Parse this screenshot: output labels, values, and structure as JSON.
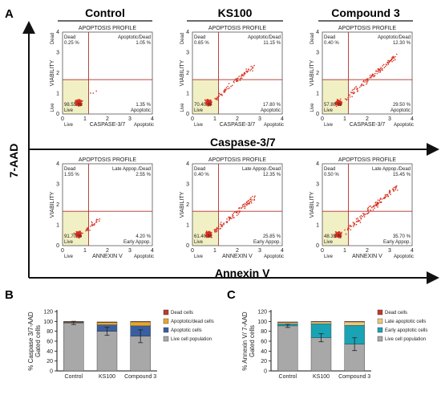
{
  "panel_labels": {
    "a": "A",
    "b": "B",
    "c": "C"
  },
  "conditions": [
    "Control",
    "KS100",
    "Compound 3"
  ],
  "flow": {
    "profile_title": "APOPTOSIS PROFILE",
    "y_axis_main": "7-AAD",
    "row1": {
      "axis_main": "Caspase-3/7",
      "xlabel": "CASPASE-3/7",
      "ylabel": "VIABILITY",
      "ylabel_top": "Dead",
      "ylabel_bottom": "Live",
      "xlabel_left": "Live",
      "xlabel_right": "Apoptotic",
      "q_tl": "Dead",
      "q_tr": "Apoptotic/Dead",
      "q_bl": "Live",
      "q_br": "Apoptotic"
    },
    "row2": {
      "axis_main": "Annexin V",
      "xlabel": "ANNEXIN V",
      "ylabel": "VIABILITY",
      "xlabel_left": "Live",
      "xlabel_right": "Apoptotic",
      "q_tl": "Dead",
      "q_tr": "Late Appop./Dead",
      "q_bl": "Live",
      "q_br": "Early Appop."
    },
    "ticks": [
      "0",
      "1",
      "2",
      "3",
      "4"
    ],
    "plots": [
      [
        {
          "tl": "0.25 %",
          "tr": "1.05 %",
          "bl": "98.55 %",
          "br": "1.35 %"
        },
        {
          "tl": "0.65 %",
          "tr": "11.15 %",
          "bl": "70.40 %",
          "br": "17.80 %"
        },
        {
          "tl": "0.40 %",
          "tr": "12.30 %",
          "bl": "57.80 %",
          "br": "29.50 %"
        }
      ],
      [
        {
          "tl": "1.55 %",
          "tr": "2.55 %",
          "bl": "91.70 %",
          "br": "4.20 %"
        },
        {
          "tl": "0.40 %",
          "tr": "12.35 %",
          "bl": "61.40 %",
          "br": "25.85 %"
        },
        {
          "tl": "0.50 %",
          "tr": "15.45 %",
          "bl": "48.35 %",
          "br": "35.70 %"
        }
      ]
    ]
  },
  "chart_data": [
    {
      "type": "bar",
      "stacked": true,
      "panel": "B",
      "categories": [
        "Control",
        "KS100",
        "Compound 3"
      ],
      "ylabel": "% Caspase 3/7-AAD Gated cells",
      "ylim": [
        0,
        120
      ],
      "yticks": [
        "0",
        "20",
        "40",
        "60",
        "80",
        "100",
        "120"
      ],
      "legend_position": "right",
      "series": [
        {
          "name": "Live cell population",
          "color": "#a8a8a8",
          "values": [
            97,
            80,
            70
          ]
        },
        {
          "name": "Apoptotic cells",
          "color": "#3a5fa0",
          "values": [
            1,
            13,
            21
          ]
        },
        {
          "name": "Apoptotic/dead cells",
          "color": "#e6a92c",
          "values": [
            1,
            5,
            8
          ]
        },
        {
          "name": "Dead cells",
          "color": "#c0392b",
          "values": [
            1,
            1,
            1
          ]
        }
      ]
    },
    {
      "type": "bar",
      "stacked": true,
      "panel": "C",
      "categories": [
        "Control",
        "KS100",
        "Compound 3"
      ],
      "ylabel": "% Annexin V/ 7-AAD Gated cells",
      "ylim": [
        0,
        120
      ],
      "yticks": [
        "0",
        "20",
        "40",
        "60",
        "80",
        "100",
        "120"
      ],
      "legend_position": "right",
      "series": [
        {
          "name": "Live cell population",
          "color": "#a8a8a8",
          "values": [
            91,
            67,
            54
          ]
        },
        {
          "name": "Early apoptotic cells",
          "color": "#1aa3b5",
          "values": [
            4,
            28,
            38
          ]
        },
        {
          "name": "Late apoptotic cells",
          "color": "#eec878",
          "values": [
            3,
            4,
            7
          ]
        },
        {
          "name": "Dead cells",
          "color": "#c0392b",
          "values": [
            1,
            1,
            1
          ]
        }
      ]
    }
  ]
}
